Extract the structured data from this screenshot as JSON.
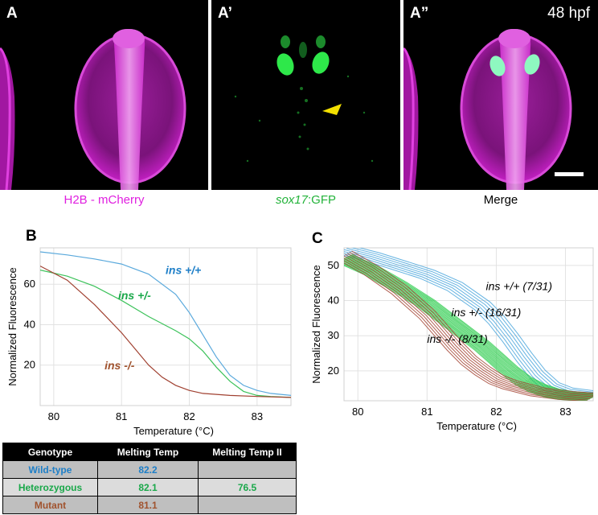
{
  "panels": {
    "a": {
      "letter": "A",
      "caption": "H2B - mCherry"
    },
    "a1": {
      "letter": "A’",
      "caption_italic": "sox17",
      "caption_rest": ":GFP"
    },
    "a2": {
      "letter": "A”",
      "time": "48 hpf",
      "caption": "Merge"
    }
  },
  "colors": {
    "magenta": "#e020e0",
    "green": "#23b33a",
    "wildtype": "#1e7fc8",
    "heterozygous": "#1aa84a",
    "mutant": "#a0522d"
  },
  "chart_data": [
    {
      "panel": "B",
      "type": "line",
      "xlabel": "Temperature (°C)",
      "ylabel": "Normalized Fluorescence",
      "xlim": [
        79.8,
        83.5
      ],
      "ylim": [
        0,
        78
      ],
      "xticks": [
        80,
        81,
        82,
        83
      ],
      "yticks": [
        20,
        40,
        60
      ],
      "grid": true,
      "series": [
        {
          "name": "ins +/+",
          "color": "#5aa9dc",
          "x": [
            79.8,
            80.2,
            80.6,
            81.0,
            81.4,
            81.8,
            82.0,
            82.2,
            82.4,
            82.6,
            82.8,
            83.0,
            83.2,
            83.5
          ],
          "y": [
            76,
            74.5,
            72.5,
            70,
            65,
            55,
            46,
            35,
            24,
            15,
            10,
            7.5,
            6,
            5
          ]
        },
        {
          "name": "ins +/-",
          "color": "#3cc25a",
          "x": [
            79.8,
            80.2,
            80.6,
            81.0,
            81.4,
            81.8,
            82.0,
            82.2,
            82.4,
            82.6,
            82.8,
            83.0,
            83.2,
            83.5
          ],
          "y": [
            67,
            64,
            59,
            52,
            44,
            37,
            33,
            27,
            19,
            12,
            7,
            5,
            4.5,
            4
          ]
        },
        {
          "name": "ins -/-",
          "color": "#a04030",
          "x": [
            79.8,
            80.2,
            80.6,
            81.0,
            81.2,
            81.4,
            81.6,
            81.8,
            82.0,
            82.2,
            82.6,
            83.0,
            83.5
          ],
          "y": [
            69,
            62,
            50,
            36,
            28,
            20,
            14,
            10,
            7.5,
            6,
            5,
            4.5,
            4
          ]
        }
      ],
      "labels": [
        {
          "text": "ins +/+",
          "x": 81.65,
          "y": 65,
          "color": "#1e7fc8"
        },
        {
          "text": "ins +/-",
          "x": 80.95,
          "y": 52.5,
          "color": "#1aa84a"
        },
        {
          "text": "ins -/-",
          "x": 80.75,
          "y": 18,
          "color": "#a0522d"
        }
      ]
    },
    {
      "panel": "C",
      "type": "line",
      "xlabel": "Temperature (°C)",
      "ylabel": "Normalized Fluorescence",
      "xlim": [
        79.8,
        83.4
      ],
      "ylim": [
        11.5,
        55
      ],
      "xticks": [
        80,
        81,
        82,
        83
      ],
      "yticks": [
        20,
        30,
        40,
        50
      ],
      "grid": true,
      "groups": [
        {
          "name": "ins +/+ (7/31)",
          "count": 7,
          "color": "#4aa6dc",
          "x": [
            79.8,
            80.2,
            80.6,
            81.0,
            81.4,
            81.8,
            82.0,
            82.2,
            82.4,
            82.6,
            82.8,
            83.0,
            83.2,
            83.4
          ],
          "y": [
            54.5,
            52.5,
            50,
            47.5,
            44,
            38.5,
            34.5,
            29.5,
            24,
            19,
            15.5,
            14,
            13.5,
            13
          ]
        },
        {
          "name": "ins +/- (16/31)",
          "count": 16,
          "color": "#2fcc4f",
          "x": [
            79.8,
            80.2,
            80.6,
            81.0,
            81.4,
            81.8,
            82.0,
            82.2,
            82.4,
            82.6,
            82.8,
            83.0,
            83.2,
            83.4
          ],
          "y": [
            52,
            48.5,
            44,
            39,
            33,
            27,
            23.5,
            20,
            17,
            15,
            13.7,
            13,
            12.7,
            12.5
          ]
        },
        {
          "name": "ins -/- (8/31)",
          "count": 8,
          "color": "#a54535",
          "x": [
            79.8,
            80.2,
            80.6,
            81.0,
            81.4,
            81.6,
            81.8,
            82.0,
            82.2,
            82.4,
            82.6,
            83.0,
            83.4
          ],
          "y": [
            53,
            48.5,
            43,
            36,
            27,
            23,
            20,
            17.5,
            16,
            15,
            14,
            13,
            12.5
          ]
        }
      ],
      "labels": [
        {
          "text": "ins +/+ (7/31)",
          "x": 81.85,
          "y": 43
        },
        {
          "text": "ins +/- (16/31)",
          "x": 81.35,
          "y": 35.5
        },
        {
          "text": "ins -/- (8/31)",
          "x": 81.0,
          "y": 28
        }
      ]
    }
  ],
  "table": {
    "headers": [
      "Genotype",
      "Melting Temp",
      "Melting Temp II"
    ],
    "rows": [
      {
        "genotype": "Wild-type",
        "temp": "82.2",
        "temp2": ""
      },
      {
        "genotype": "Heterozygous",
        "temp": "82.1",
        "temp2": "76.5"
      },
      {
        "genotype": "Mutant",
        "temp": "81.1",
        "temp2": ""
      }
    ]
  }
}
